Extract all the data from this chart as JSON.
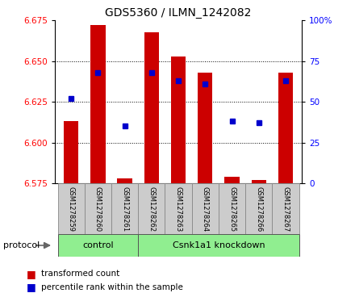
{
  "title": "GDS5360 / ILMN_1242082",
  "samples": [
    "GSM1278259",
    "GSM1278260",
    "GSM1278261",
    "GSM1278262",
    "GSM1278263",
    "GSM1278264",
    "GSM1278265",
    "GSM1278266",
    "GSM1278267"
  ],
  "transformed_count": [
    6.613,
    6.672,
    6.578,
    6.668,
    6.653,
    6.643,
    6.579,
    6.577,
    6.643
  ],
  "percentile_rank": [
    52,
    68,
    35,
    68,
    63,
    61,
    38,
    37,
    63
  ],
  "ylim_left": [
    6.575,
    6.675
  ],
  "ylim_right": [
    0,
    100
  ],
  "yticks_left": [
    6.575,
    6.6,
    6.625,
    6.65,
    6.675
  ],
  "yticks_right": [
    0,
    25,
    50,
    75,
    100
  ],
  "ytick_labels_right": [
    "0",
    "25",
    "50",
    "75",
    "100%"
  ],
  "bar_color": "#cc0000",
  "dot_color": "#0000cc",
  "control_label": "control",
  "knockdown_label": "Csnk1a1 knockdown",
  "protocol_label": "protocol",
  "legend_bar": "transformed count",
  "legend_dot": "percentile rank within the sample",
  "base_value": 6.575,
  "group_box_color": "#90ee90",
  "tick_label_area_color": "#cccccc",
  "bg_color": "#ffffff"
}
